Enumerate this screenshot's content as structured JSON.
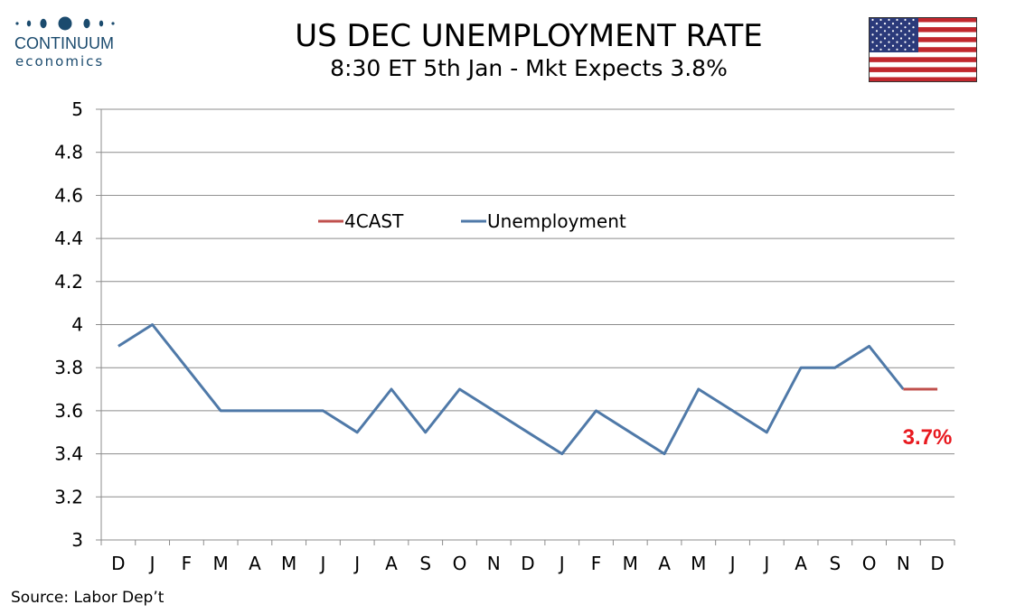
{
  "logo": {
    "name": "CONTINUUM",
    "sub": "economics",
    "color": "#1b4b6e"
  },
  "title": "US DEC UNEMPLOYMENT RATE",
  "subtitle": "8:30 ET 5th Jan - Mkt Expects 3.8%",
  "source": "Source: Labor Dep’t",
  "flag_icon": "us-flag-icon",
  "chart_data": {
    "type": "line",
    "categories": [
      "D",
      "J",
      "F",
      "M",
      "A",
      "M",
      "J",
      "J",
      "A",
      "S",
      "O",
      "N",
      "D",
      "J",
      "F",
      "M",
      "A",
      "M",
      "J",
      "J",
      "A",
      "S",
      "O",
      "N",
      "D"
    ],
    "ylim": [
      3,
      5
    ],
    "yticks": [
      3,
      3.2,
      3.4,
      3.6,
      3.8,
      4,
      4.2,
      4.4,
      4.6,
      4.8,
      5
    ],
    "ytick_labels": [
      "3",
      "3.2",
      "3.4",
      "3.6",
      "3.8",
      "4",
      "4.2",
      "4.4",
      "4.6",
      "4.8",
      "5"
    ],
    "grid": true,
    "legend_placement": "top-center",
    "series": [
      {
        "name": "4CAST",
        "color": "#c0504d",
        "values": [
          null,
          null,
          null,
          null,
          null,
          null,
          null,
          null,
          null,
          null,
          null,
          null,
          null,
          null,
          null,
          null,
          null,
          null,
          null,
          null,
          null,
          null,
          null,
          3.7,
          3.7
        ]
      },
      {
        "name": "Unemployment",
        "color": "#4f79a8",
        "values": [
          3.9,
          4.0,
          3.8,
          3.6,
          3.6,
          3.6,
          3.6,
          3.5,
          3.7,
          3.5,
          3.7,
          3.6,
          3.5,
          3.4,
          3.6,
          3.5,
          3.4,
          3.7,
          3.6,
          3.5,
          3.8,
          3.8,
          3.9,
          3.7,
          null
        ]
      }
    ],
    "annotation": {
      "text": "3.7%",
      "color": "#e8191f"
    }
  }
}
